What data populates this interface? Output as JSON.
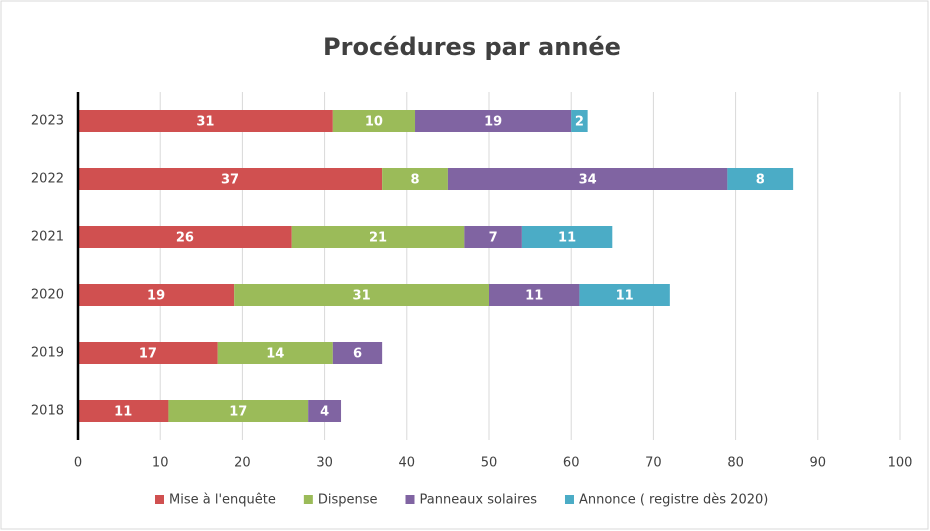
{
  "chart_data": {
    "type": "bar",
    "orientation": "horizontal",
    "stacked": true,
    "title": "Procédures par année",
    "categories": [
      "2023",
      "2022",
      "2021",
      "2020",
      "2019",
      "2018"
    ],
    "series": [
      {
        "name": "Mise à l'enquête",
        "color": "#d05050",
        "values": [
          31,
          37,
          26,
          19,
          17,
          11
        ]
      },
      {
        "name": "Dispense",
        "color": "#9bbb59",
        "values": [
          10,
          8,
          21,
          31,
          14,
          17
        ]
      },
      {
        "name": "Panneaux solaires",
        "color": "#8064a2",
        "values": [
          19,
          34,
          7,
          11,
          6,
          4
        ]
      },
      {
        "name": "Annonce ( registre dès 2020)",
        "color": "#4bacc6",
        "values": [
          2,
          8,
          11,
          11,
          null,
          null
        ]
      }
    ],
    "xlim": [
      0,
      100
    ],
    "xticks": [
      0,
      10,
      20,
      30,
      40,
      50,
      60,
      70,
      80,
      90,
      100
    ],
    "grid": true,
    "legend": "bottom"
  }
}
